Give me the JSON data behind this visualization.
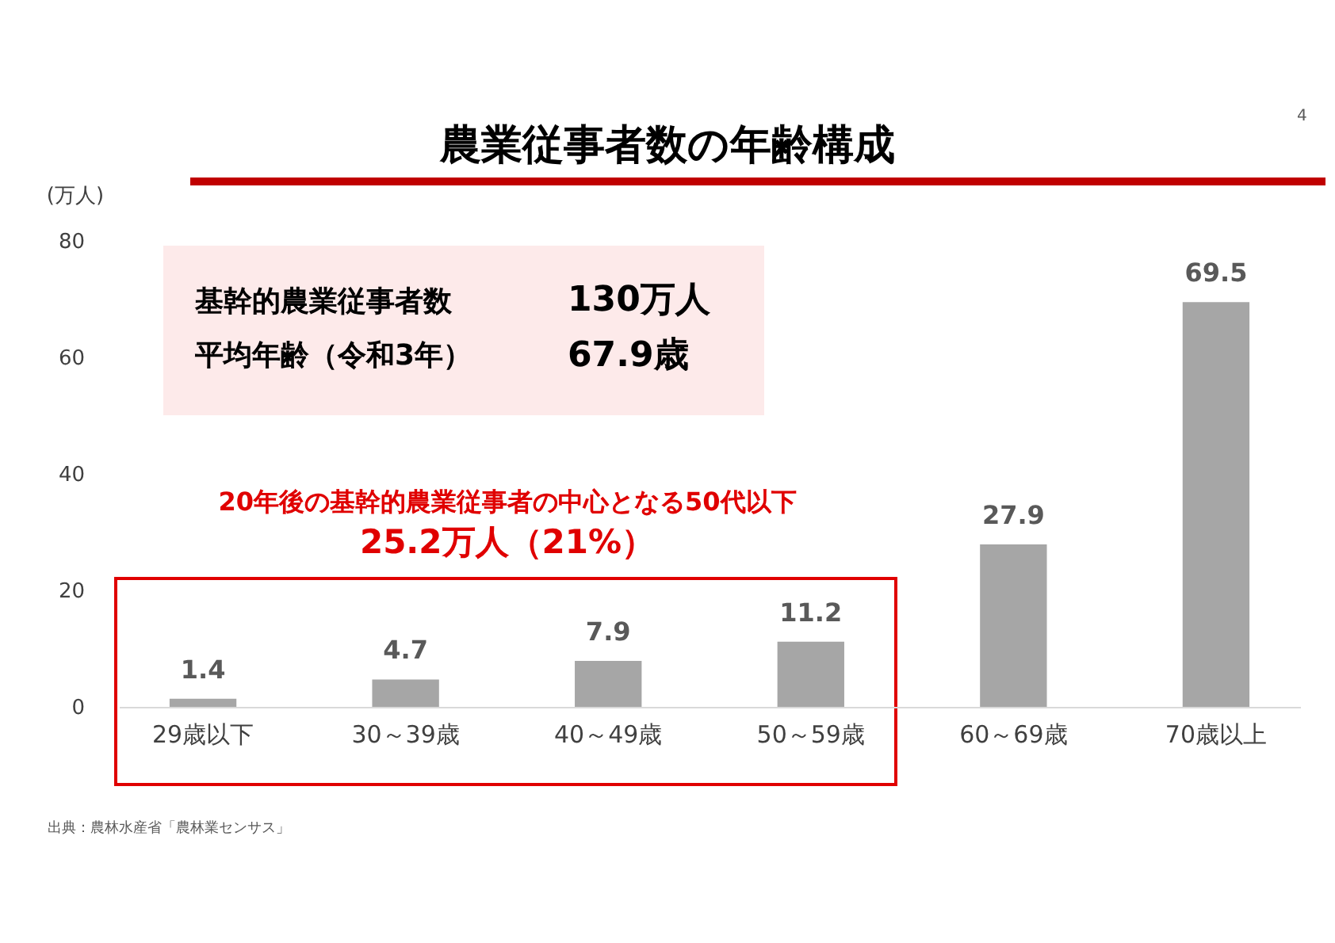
{
  "chart_data": {
    "type": "bar",
    "title": "農業従事者数の年齢構成",
    "ylabel": "(万人)",
    "categories": [
      "29歳以下",
      "30～39歳",
      "40～49歳",
      "50～59歳",
      "60～69歳",
      "70歳以上"
    ],
    "values": [
      1.4,
      4.7,
      7.9,
      11.2,
      27.9,
      69.5
    ],
    "color": "#a6a6a6",
    "ylim": [
      0,
      80
    ],
    "yticks": [
      0,
      20,
      40,
      60,
      80
    ],
    "data_labels": true,
    "annotations": [
      "基幹的農業従事者数",
      "130万人",
      "平均年齢（令和3年）",
      "67.9歳",
      "20年後の基幹的農業従事者の中心となる50代以下",
      "25.2万人（21%）",
      "出典：農林水産省「農林業センサス」",
      "4"
    ]
  }
}
